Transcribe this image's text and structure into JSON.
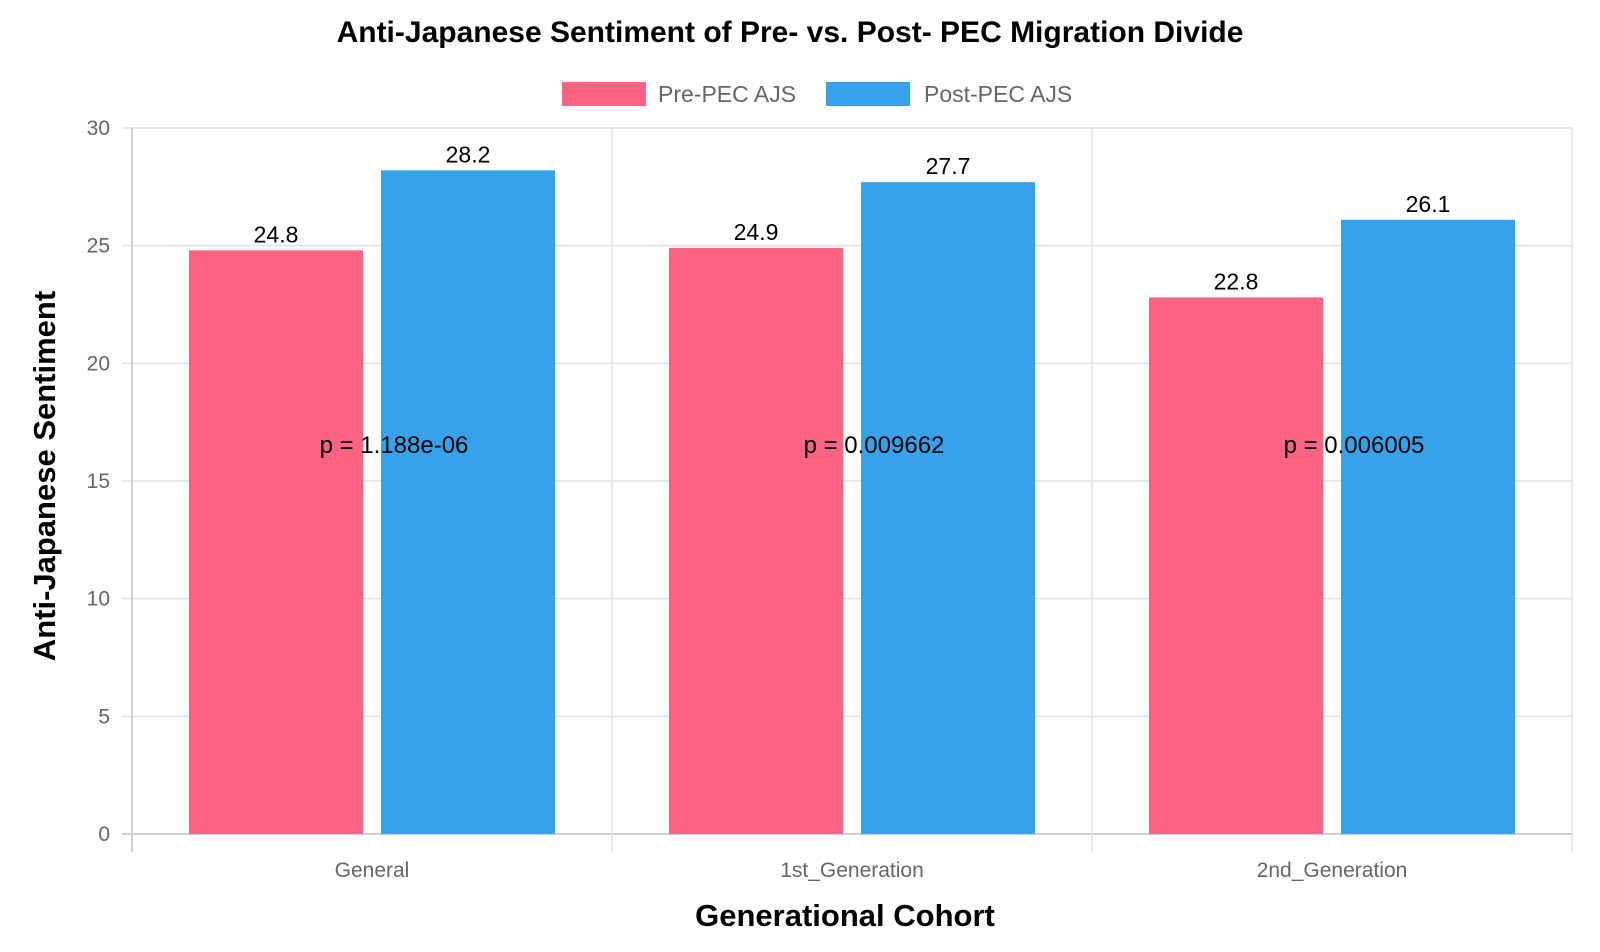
{
  "chart_data": {
    "type": "bar",
    "title": "Anti-Japanese Sentiment of Pre- vs. Post- PEC Migration Divide",
    "xlabel": "Generational Cohort",
    "ylabel": "Anti-Japanese Sentiment",
    "categories": [
      "General",
      "1st_Generation",
      "2nd_Generation"
    ],
    "series": [
      {
        "name": "Pre-PEC AJS",
        "color": "#ff6384",
        "values": [
          24.8,
          24.9,
          22.8
        ]
      },
      {
        "name": "Post-PEC AJS",
        "color": "#36a2eb",
        "values": [
          28.2,
          27.7,
          26.1
        ]
      }
    ],
    "ylim": [
      0,
      30
    ],
    "yticks": [
      0,
      5,
      10,
      15,
      20,
      25,
      30
    ],
    "grid": true,
    "legend_position": "top-center",
    "annotations": [
      {
        "category": "General",
        "text": "p = 1.188e-06",
        "y": 16.2
      },
      {
        "category": "1st_Generation",
        "text": "p = 0.009662",
        "y": 16.2
      },
      {
        "category": "2nd_Generation",
        "text": "p = 0.006005",
        "y": 16.2
      }
    ]
  }
}
